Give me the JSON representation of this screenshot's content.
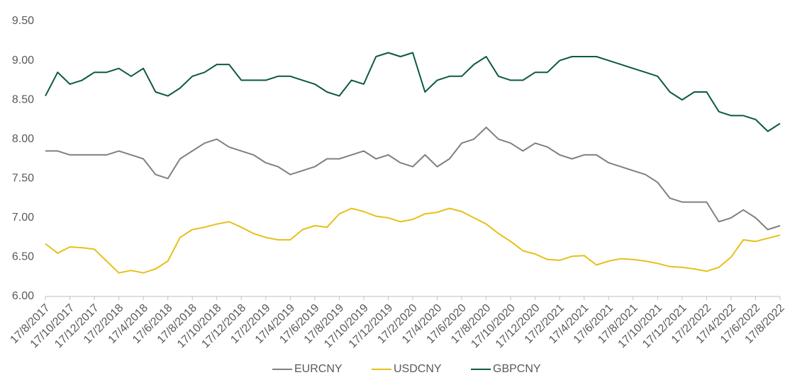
{
  "chart_data": {
    "type": "line",
    "categories": [
      "17/8/2017",
      null,
      "17/10/2017",
      null,
      "17/12/2017",
      null,
      "17/2/2018",
      null,
      "17/4/2018",
      null,
      "17/6/2018",
      null,
      "17/8/2018",
      null,
      "17/10/2018",
      null,
      "17/12/2018",
      null,
      "17/2/2019",
      null,
      "17/4/2019",
      null,
      "17/6/2019",
      null,
      "17/8/2019",
      null,
      "17/10/2019",
      null,
      "17/12/2019",
      null,
      "17/2/2020",
      null,
      "17/4/2020",
      null,
      "17/6/2020",
      null,
      "17/8/2020",
      null,
      "17/10/2020",
      null,
      "17/12/2020",
      null,
      "17/2/2021",
      null,
      "17/4/2021",
      null,
      "17/6/2021",
      null,
      "17/8/2021",
      null,
      "17/10/2021",
      null,
      "17/12/2021",
      null,
      "17/2/2022",
      null,
      "17/4/2022",
      null,
      "17/6/2022",
      null,
      "17/8/2022"
    ],
    "series": [
      {
        "name": "EURCNY",
        "color": "#808080",
        "values": [
          7.85,
          7.85,
          7.8,
          7.8,
          7.8,
          7.8,
          7.85,
          7.8,
          7.75,
          7.55,
          7.5,
          7.75,
          7.85,
          7.95,
          8.0,
          7.9,
          7.85,
          7.8,
          7.7,
          7.65,
          7.55,
          7.6,
          7.65,
          7.75,
          7.75,
          7.8,
          7.85,
          7.75,
          7.8,
          7.7,
          7.65,
          7.8,
          7.65,
          7.75,
          7.95,
          8.0,
          8.15,
          8.0,
          7.95,
          7.85,
          7.95,
          7.9,
          7.8,
          7.75,
          7.8,
          7.8,
          7.7,
          7.65,
          7.6,
          7.55,
          7.45,
          7.25,
          7.2,
          7.2,
          7.2,
          6.95,
          7.0,
          7.1,
          7.0,
          6.85,
          6.9
        ]
      },
      {
        "name": "USDCNY",
        "color": "#e6c019",
        "values": [
          6.67,
          6.55,
          6.63,
          6.62,
          6.6,
          6.45,
          6.3,
          6.33,
          6.3,
          6.35,
          6.45,
          6.75,
          6.85,
          6.88,
          6.92,
          6.95,
          6.88,
          6.8,
          6.75,
          6.72,
          6.72,
          6.85,
          6.9,
          6.88,
          7.05,
          7.12,
          7.08,
          7.02,
          7.0,
          6.95,
          6.98,
          7.05,
          7.07,
          7.12,
          7.08,
          7.0,
          6.92,
          6.8,
          6.7,
          6.58,
          6.54,
          6.47,
          6.46,
          6.51,
          6.52,
          6.4,
          6.45,
          6.48,
          6.47,
          6.45,
          6.42,
          6.38,
          6.37,
          6.35,
          6.32,
          6.37,
          6.5,
          6.72,
          6.7,
          6.74,
          6.78
        ]
      },
      {
        "name": "GBPCNY",
        "color": "#0b5a3f",
        "values": [
          8.55,
          8.85,
          8.7,
          8.75,
          8.85,
          8.85,
          8.9,
          8.8,
          8.9,
          8.6,
          8.55,
          8.65,
          8.8,
          8.85,
          8.95,
          8.95,
          8.75,
          8.75,
          8.75,
          8.8,
          8.8,
          8.75,
          8.7,
          8.6,
          8.55,
          8.75,
          8.7,
          9.05,
          9.1,
          9.05,
          9.1,
          8.6,
          8.75,
          8.8,
          8.8,
          8.95,
          9.05,
          8.8,
          8.75,
          8.75,
          8.85,
          8.85,
          9.0,
          9.05,
          9.05,
          9.05,
          9.0,
          8.95,
          8.9,
          8.85,
          8.8,
          8.6,
          8.5,
          8.6,
          8.6,
          8.35,
          8.3,
          8.3,
          8.25,
          8.1,
          8.2
        ]
      }
    ],
    "ylim": [
      6,
      9.5
    ],
    "yticks": [
      {
        "value": 6,
        "label": "6.00"
      },
      {
        "value": 6.5,
        "label": "6.50"
      },
      {
        "value": 7,
        "label": "7.00"
      },
      {
        "value": 7.5,
        "label": "7.50"
      },
      {
        "value": 8,
        "label": "8.00"
      },
      {
        "value": 8.5,
        "label": "8.50"
      },
      {
        "value": 9,
        "label": "9.00"
      },
      {
        "value": 9.5,
        "label": "9.50"
      }
    ],
    "grid": false,
    "legend": "bottom"
  }
}
